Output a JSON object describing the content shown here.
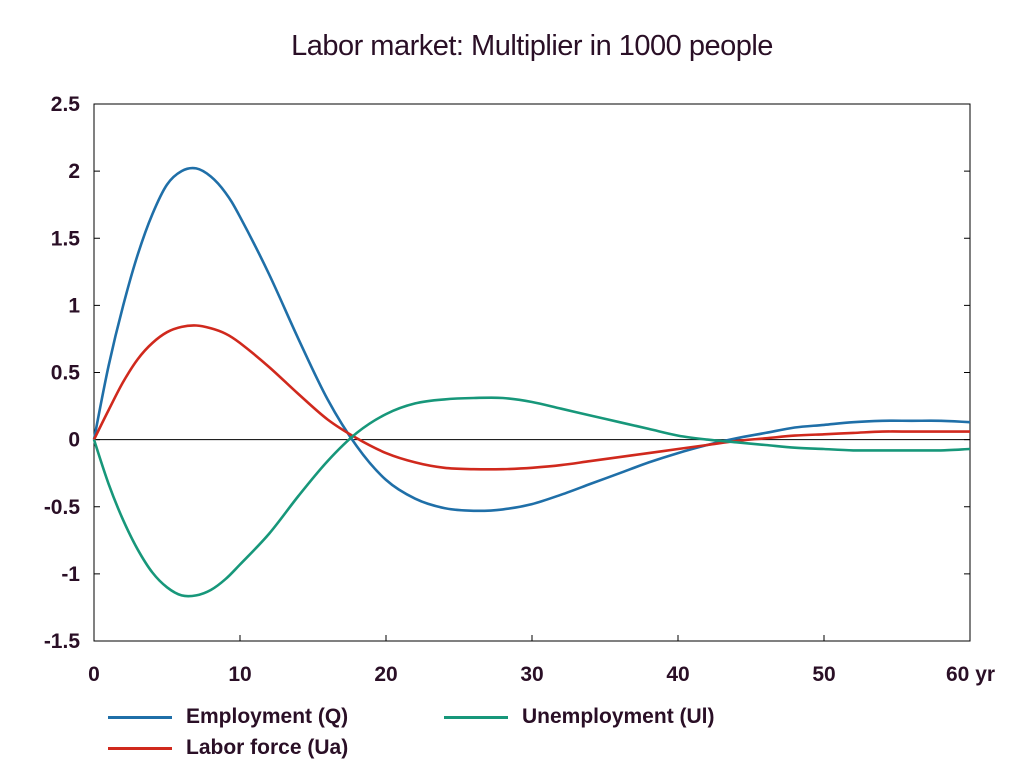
{
  "chart_data": {
    "type": "line",
    "title": "Labor market: Multiplier in 1000 people",
    "xlabel": "",
    "ylabel": "",
    "xlim": [
      0,
      60
    ],
    "ylim": [
      -1.5,
      2.5
    ],
    "x_ticks": [
      0,
      10,
      20,
      30,
      40,
      50,
      60
    ],
    "x_tick_labels": [
      "0",
      "10",
      "20",
      "30",
      "40",
      "50",
      "60 yr"
    ],
    "y_ticks": [
      2.5,
      2,
      1.5,
      1,
      0.5,
      0,
      -0.5,
      -1,
      -1.5
    ],
    "y_tick_labels": [
      "2.5",
      "2",
      "1.5",
      "1",
      "0.5",
      "0",
      "-0.5",
      "-1",
      "-1.5"
    ],
    "grid": false,
    "legend_position": "bottom",
    "series": [
      {
        "name": "Employment (Q)",
        "color": "#1f6fa8",
        "x": [
          0,
          1,
          2,
          3,
          4,
          5,
          6,
          7,
          8,
          9,
          10,
          12,
          14,
          16,
          18,
          20,
          22,
          24,
          26,
          28,
          30,
          32,
          34,
          36,
          38,
          40,
          42,
          44,
          46,
          48,
          50,
          52,
          54,
          56,
          58,
          60
        ],
        "y": [
          0,
          0.55,
          1.0,
          1.38,
          1.68,
          1.9,
          2.0,
          2.02,
          1.96,
          1.84,
          1.66,
          1.23,
          0.75,
          0.3,
          -0.05,
          -0.3,
          -0.44,
          -0.51,
          -0.53,
          -0.52,
          -0.48,
          -0.41,
          -0.33,
          -0.25,
          -0.17,
          -0.1,
          -0.04,
          0.01,
          0.05,
          0.09,
          0.11,
          0.13,
          0.14,
          0.14,
          0.14,
          0.13
        ]
      },
      {
        "name": "Labor force (Ua)",
        "color": "#d0291d",
        "x": [
          0,
          1,
          2,
          3,
          4,
          5,
          6,
          7,
          8,
          9,
          10,
          12,
          14,
          16,
          18,
          20,
          22,
          24,
          26,
          28,
          30,
          32,
          34,
          36,
          38,
          40,
          42,
          44,
          46,
          48,
          50,
          52,
          54,
          56,
          58,
          60
        ],
        "y": [
          0,
          0.22,
          0.43,
          0.6,
          0.72,
          0.8,
          0.84,
          0.85,
          0.83,
          0.79,
          0.72,
          0.54,
          0.34,
          0.15,
          0.01,
          -0.1,
          -0.17,
          -0.21,
          -0.22,
          -0.22,
          -0.21,
          -0.19,
          -0.16,
          -0.13,
          -0.1,
          -0.07,
          -0.04,
          -0.01,
          0.01,
          0.03,
          0.04,
          0.05,
          0.06,
          0.06,
          0.06,
          0.06
        ]
      },
      {
        "name": "Unemployment (Ul)",
        "color": "#17977a",
        "x": [
          0,
          1,
          2,
          3,
          4,
          5,
          6,
          7,
          8,
          9,
          10,
          12,
          14,
          16,
          18,
          20,
          22,
          24,
          26,
          28,
          30,
          32,
          34,
          36,
          38,
          40,
          42,
          44,
          46,
          48,
          50,
          52,
          54,
          56,
          58,
          60
        ],
        "y": [
          0,
          -0.33,
          -0.6,
          -0.82,
          -0.99,
          -1.1,
          -1.16,
          -1.16,
          -1.12,
          -1.04,
          -0.93,
          -0.7,
          -0.42,
          -0.16,
          0.05,
          0.19,
          0.27,
          0.3,
          0.31,
          0.31,
          0.28,
          0.23,
          0.18,
          0.13,
          0.08,
          0.03,
          0.0,
          -0.02,
          -0.04,
          -0.06,
          -0.07,
          -0.08,
          -0.08,
          -0.08,
          -0.08,
          -0.07
        ]
      }
    ]
  }
}
